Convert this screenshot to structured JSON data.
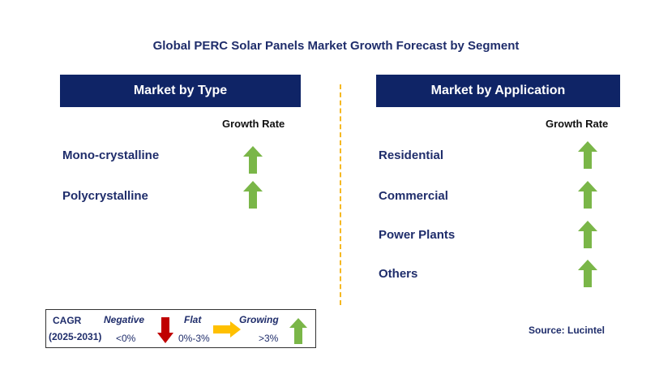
{
  "title": "Global PERC Solar Panels Market Growth Forecast by Segment",
  "type_panel": {
    "header": "Market by Type",
    "column_label": "Growth Rate",
    "rows": [
      {
        "label": "Mono-crystalline",
        "trend": "growing"
      },
      {
        "label": "Polycrystalline",
        "trend": "growing"
      }
    ]
  },
  "application_panel": {
    "header": "Market by Application",
    "column_label": "Growth Rate",
    "rows": [
      {
        "label": "Residential",
        "trend": "growing"
      },
      {
        "label": "Commercial",
        "trend": "growing"
      },
      {
        "label": "Power Plants",
        "trend": "growing"
      },
      {
        "label": "Others",
        "trend": "growing"
      }
    ]
  },
  "legend": {
    "cagr": "CAGR",
    "years": "(2025-2031)",
    "negative": {
      "label": "Negative",
      "range": "<0%",
      "color": "#c00000"
    },
    "flat": {
      "label": "Flat",
      "range": "0%-3%",
      "color": "#ffc000"
    },
    "growing": {
      "label": "Growing",
      "range": ">3%",
      "color": "#7ab648"
    }
  },
  "source": "Source: Lucintel",
  "colors": {
    "header_bg": "#0f2466",
    "divider": "#f5b820",
    "text": "#1f2d6b"
  }
}
